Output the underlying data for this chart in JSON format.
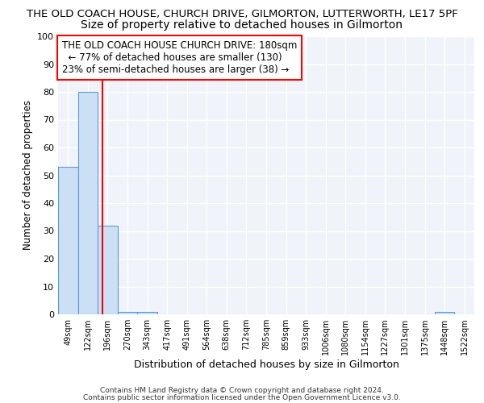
{
  "title": "THE OLD COACH HOUSE, CHURCH DRIVE, GILMORTON, LUTTERWORTH, LE17 5PF",
  "subtitle": "Size of property relative to detached houses in Gilmorton",
  "xlabel": "Distribution of detached houses by size in Gilmorton",
  "ylabel": "Number of detached properties",
  "categories": [
    "49sqm",
    "122sqm",
    "196sqm",
    "270sqm",
    "343sqm",
    "417sqm",
    "491sqm",
    "564sqm",
    "638sqm",
    "712sqm",
    "785sqm",
    "859sqm",
    "933sqm",
    "1006sqm",
    "1080sqm",
    "1154sqm",
    "1227sqm",
    "1301sqm",
    "1375sqm",
    "1448sqm",
    "1522sqm"
  ],
  "values": [
    53,
    80,
    32,
    1,
    1,
    0,
    0,
    0,
    0,
    0,
    0,
    0,
    0,
    0,
    0,
    0,
    0,
    0,
    0,
    1,
    0
  ],
  "bar_color": "#cce0f5",
  "bar_edge_color": "#5b9bd5",
  "red_line_index": 1.73,
  "ylim": [
    0,
    100
  ],
  "yticks": [
    0,
    10,
    20,
    30,
    40,
    50,
    60,
    70,
    80,
    90,
    100
  ],
  "annotation_title": "THE OLD COACH HOUSE CHURCH DRIVE: 180sqm",
  "annotation_line1": "← 77% of detached houses are smaller (130)",
  "annotation_line2": "23% of semi-detached houses are larger (38) →",
  "footer1": "Contains HM Land Registry data © Crown copyright and database right 2024.",
  "footer2": "Contains public sector information licensed under the Open Government Licence v3.0.",
  "title_fontsize": 9.5,
  "subtitle_fontsize": 10,
  "annotation_fontsize": 8.5
}
